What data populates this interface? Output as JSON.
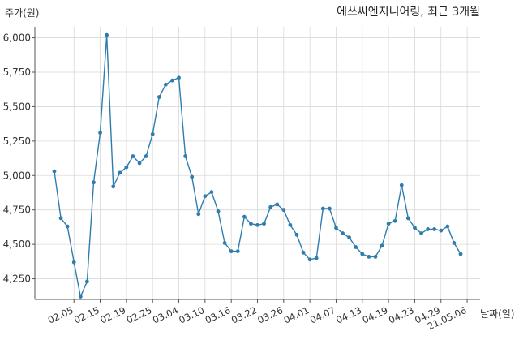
{
  "chart_data": {
    "type": "line",
    "title": "에쓰씨엔지니어링, 최근 3개월",
    "ylabel": "주가(원)",
    "xlabel": "날짜(일)",
    "ylim": [
      4100,
      6080
    ],
    "yticks": [
      4250,
      4500,
      4750,
      5000,
      5250,
      5500,
      5750,
      6000
    ],
    "ytick_labels": [
      "4,250",
      "4,500",
      "4,750",
      "5,000",
      "5,250",
      "5,500",
      "5,750",
      "6,000"
    ],
    "xtick_labels": [
      "02.05",
      "02.15",
      "02.19",
      "02.25",
      "03.04",
      "03.10",
      "03.16",
      "03.22",
      "03.26",
      "04.01",
      "04.07",
      "04.13",
      "04.19",
      "04.23",
      "04.29",
      "21.05.06"
    ],
    "xtick_indices": [
      3,
      7,
      11,
      15,
      19,
      23,
      27,
      31,
      35,
      39,
      43,
      47,
      51,
      55,
      59,
      63
    ],
    "grid": true,
    "color": "#2e7dad",
    "series": [
      {
        "values": [
          5030,
          4690,
          4630,
          4370,
          4120,
          4230,
          4950,
          5310,
          6020,
          4920,
          5020,
          5060,
          5140,
          5090,
          5140,
          5300,
          5570,
          5660,
          5690,
          5710,
          5140,
          4990,
          4720,
          4850,
          4880,
          4740,
          4510,
          4450,
          4450,
          4700,
          4650,
          4640,
          4650,
          4770,
          4790,
          4750,
          4640,
          4570,
          4440,
          4390,
          4400,
          4760,
          4760,
          4620,
          4580,
          4550,
          4480,
          4430,
          4410,
          4410,
          4490,
          4650,
          4670,
          4930,
          4690,
          4620,
          4580,
          4610,
          4610,
          4600,
          4630,
          4510,
          4430
        ]
      }
    ]
  }
}
